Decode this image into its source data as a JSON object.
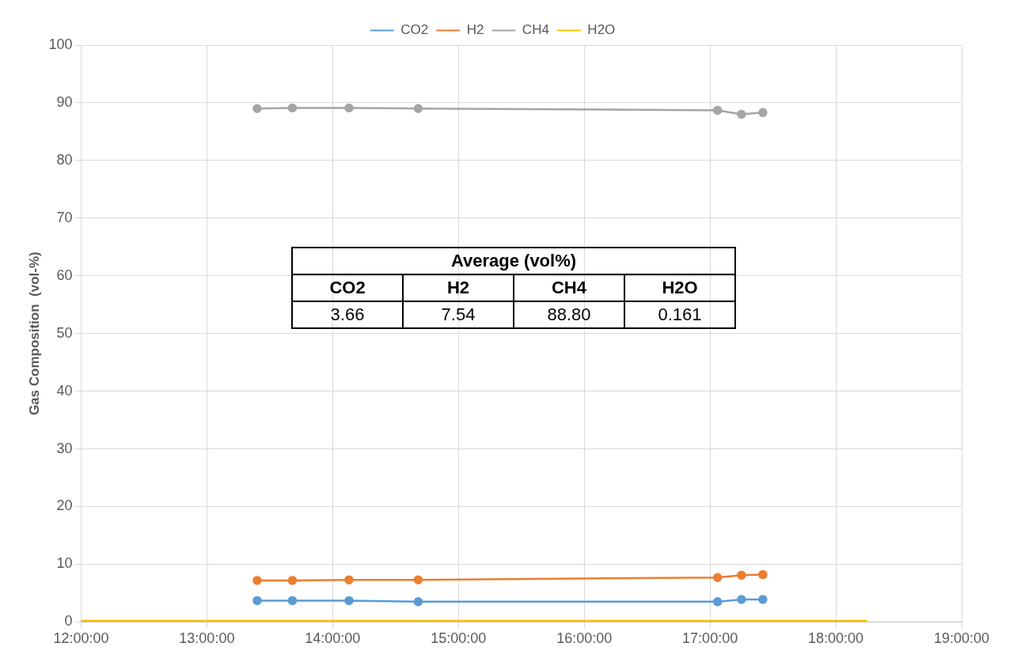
{
  "chart_data": {
    "type": "line",
    "ylabel": "Gas Composition  (vol-%)",
    "legend": "top",
    "grid": true,
    "marker": "circle",
    "xlim": [
      12,
      19
    ],
    "ylim": [
      0,
      100
    ],
    "xticks": [
      {
        "value": 12,
        "label": "12:00:00"
      },
      {
        "value": 13,
        "label": "13:00:00"
      },
      {
        "value": 14,
        "label": "14:00:00"
      },
      {
        "value": 15,
        "label": "15:00:00"
      },
      {
        "value": 16,
        "label": "16:00:00"
      },
      {
        "value": 17,
        "label": "17:00:00"
      },
      {
        "value": 18,
        "label": "18:00:00"
      },
      {
        "value": 19,
        "label": "19:00:00"
      }
    ],
    "yticks": [
      0,
      10,
      20,
      30,
      40,
      50,
      60,
      70,
      80,
      90,
      100
    ],
    "x": [
      13.4,
      13.68,
      14.13,
      14.68,
      17.06,
      17.25,
      17.42
    ],
    "series": [
      {
        "name": "CO2",
        "color": "#5b9bd5",
        "values": [
          3.7,
          3.7,
          3.7,
          3.5,
          3.5,
          3.9,
          3.9
        ]
      },
      {
        "name": "H2",
        "color": "#ed7d31",
        "values": [
          7.2,
          7.2,
          7.3,
          7.3,
          7.7,
          8.1,
          8.2
        ]
      },
      {
        "name": "CH4",
        "color": "#a5a5a5",
        "values": [
          89.0,
          89.1,
          89.1,
          89.0,
          88.7,
          88.0,
          88.3
        ]
      },
      {
        "name": "H2O",
        "color": "#ffc000",
        "marker": "none",
        "x": [
          12,
          18.25
        ],
        "values": [
          0.2,
          0.2
        ]
      }
    ],
    "annotations": [
      "Average (vol%)",
      "CO2",
      "H2",
      "CH4",
      "H2O",
      "3.66",
      "7.54",
      "88.80",
      "0.161"
    ]
  }
}
